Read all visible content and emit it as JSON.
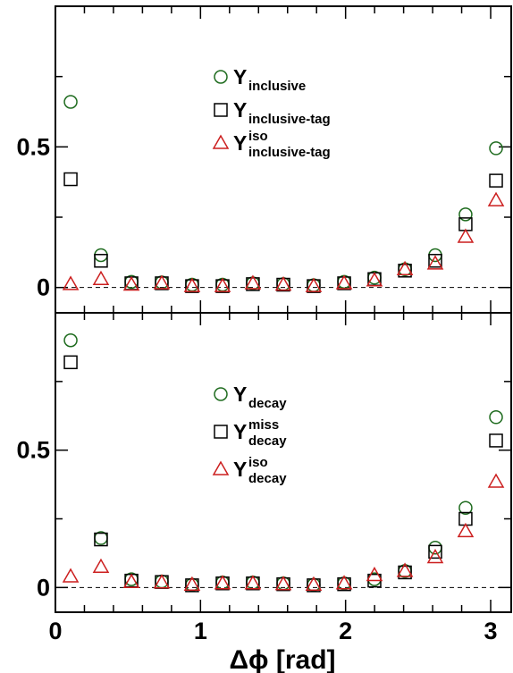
{
  "chart_data": [
    {
      "type": "scatter",
      "panel": "top",
      "x": [
        0.105,
        0.314,
        0.524,
        0.733,
        0.942,
        1.152,
        1.361,
        1.571,
        1.78,
        1.99,
        2.199,
        2.409,
        2.618,
        2.827,
        3.037
      ],
      "series": [
        {
          "name": "Y",
          "sub": "inclusive",
          "sup": "",
          "marker": "circle",
          "color": "#1e6b1e",
          "values": [
            0.66,
            0.115,
            0.02,
            0.018,
            0.01,
            0.01,
            0.015,
            0.012,
            0.008,
            0.02,
            0.035,
            0.065,
            0.115,
            0.26,
            0.495
          ]
        },
        {
          "name": "Y",
          "sub": "inclusive-tag",
          "sup": "",
          "marker": "square",
          "color": "#000000",
          "values": [
            0.385,
            0.095,
            0.015,
            0.015,
            0.005,
            0.005,
            0.012,
            0.01,
            0.005,
            0.015,
            0.03,
            0.06,
            0.095,
            0.225,
            0.38
          ]
        },
        {
          "name": "Y",
          "sub": "inclusive-tag",
          "sup": "iso",
          "marker": "triangle",
          "color": "#cc1f1f",
          "values": [
            0.012,
            0.03,
            0.01,
            0.015,
            0.005,
            0.005,
            0.015,
            0.01,
            0.005,
            0.015,
            0.025,
            0.065,
            0.085,
            0.18,
            0.31
          ]
        }
      ],
      "xlim": [
        0,
        3.14159
      ],
      "ylim": [
        -0.09,
        1.0
      ],
      "yticks": [
        0,
        0.5
      ],
      "ytick_labels": [
        "0",
        "0.5"
      ],
      "reference_line": 0
    },
    {
      "type": "scatter",
      "panel": "bottom",
      "x": [
        0.105,
        0.314,
        0.524,
        0.733,
        0.942,
        1.152,
        1.361,
        1.571,
        1.78,
        1.99,
        2.199,
        2.409,
        2.618,
        2.827,
        3.037
      ],
      "series": [
        {
          "name": "Y",
          "sub": "decay",
          "sup": "",
          "marker": "circle",
          "color": "#1e6b1e",
          "values": [
            0.9,
            0.18,
            0.03,
            0.022,
            0.01,
            0.018,
            0.018,
            0.015,
            0.01,
            0.015,
            0.03,
            0.06,
            0.145,
            0.29,
            0.62
          ]
        },
        {
          "name": "Y",
          "sub": "decay",
          "sup": "miss",
          "marker": "square",
          "color": "#000000",
          "values": [
            0.82,
            0.175,
            0.025,
            0.02,
            0.008,
            0.015,
            0.015,
            0.012,
            0.008,
            0.012,
            0.025,
            0.055,
            0.13,
            0.25,
            0.535
          ]
        },
        {
          "name": "Y",
          "sub": "decay",
          "sup": "iso",
          "marker": "triangle",
          "color": "#cc1f1f",
          "values": [
            0.04,
            0.075,
            0.02,
            0.018,
            0.01,
            0.015,
            0.015,
            0.012,
            0.01,
            0.015,
            0.045,
            0.06,
            0.11,
            0.205,
            0.385
          ]
        }
      ],
      "xlim": [
        0,
        3.14159
      ],
      "xticks": [
        0,
        1,
        2,
        3
      ],
      "xtick_labels": [
        "0",
        "1",
        "2",
        "3"
      ],
      "xlabel": "Δϕ [rad]",
      "ylim": [
        -0.09,
        1.0
      ],
      "yticks": [
        0,
        0.5
      ],
      "ytick_labels": [
        "0",
        "0.5"
      ],
      "reference_line": 0
    }
  ]
}
